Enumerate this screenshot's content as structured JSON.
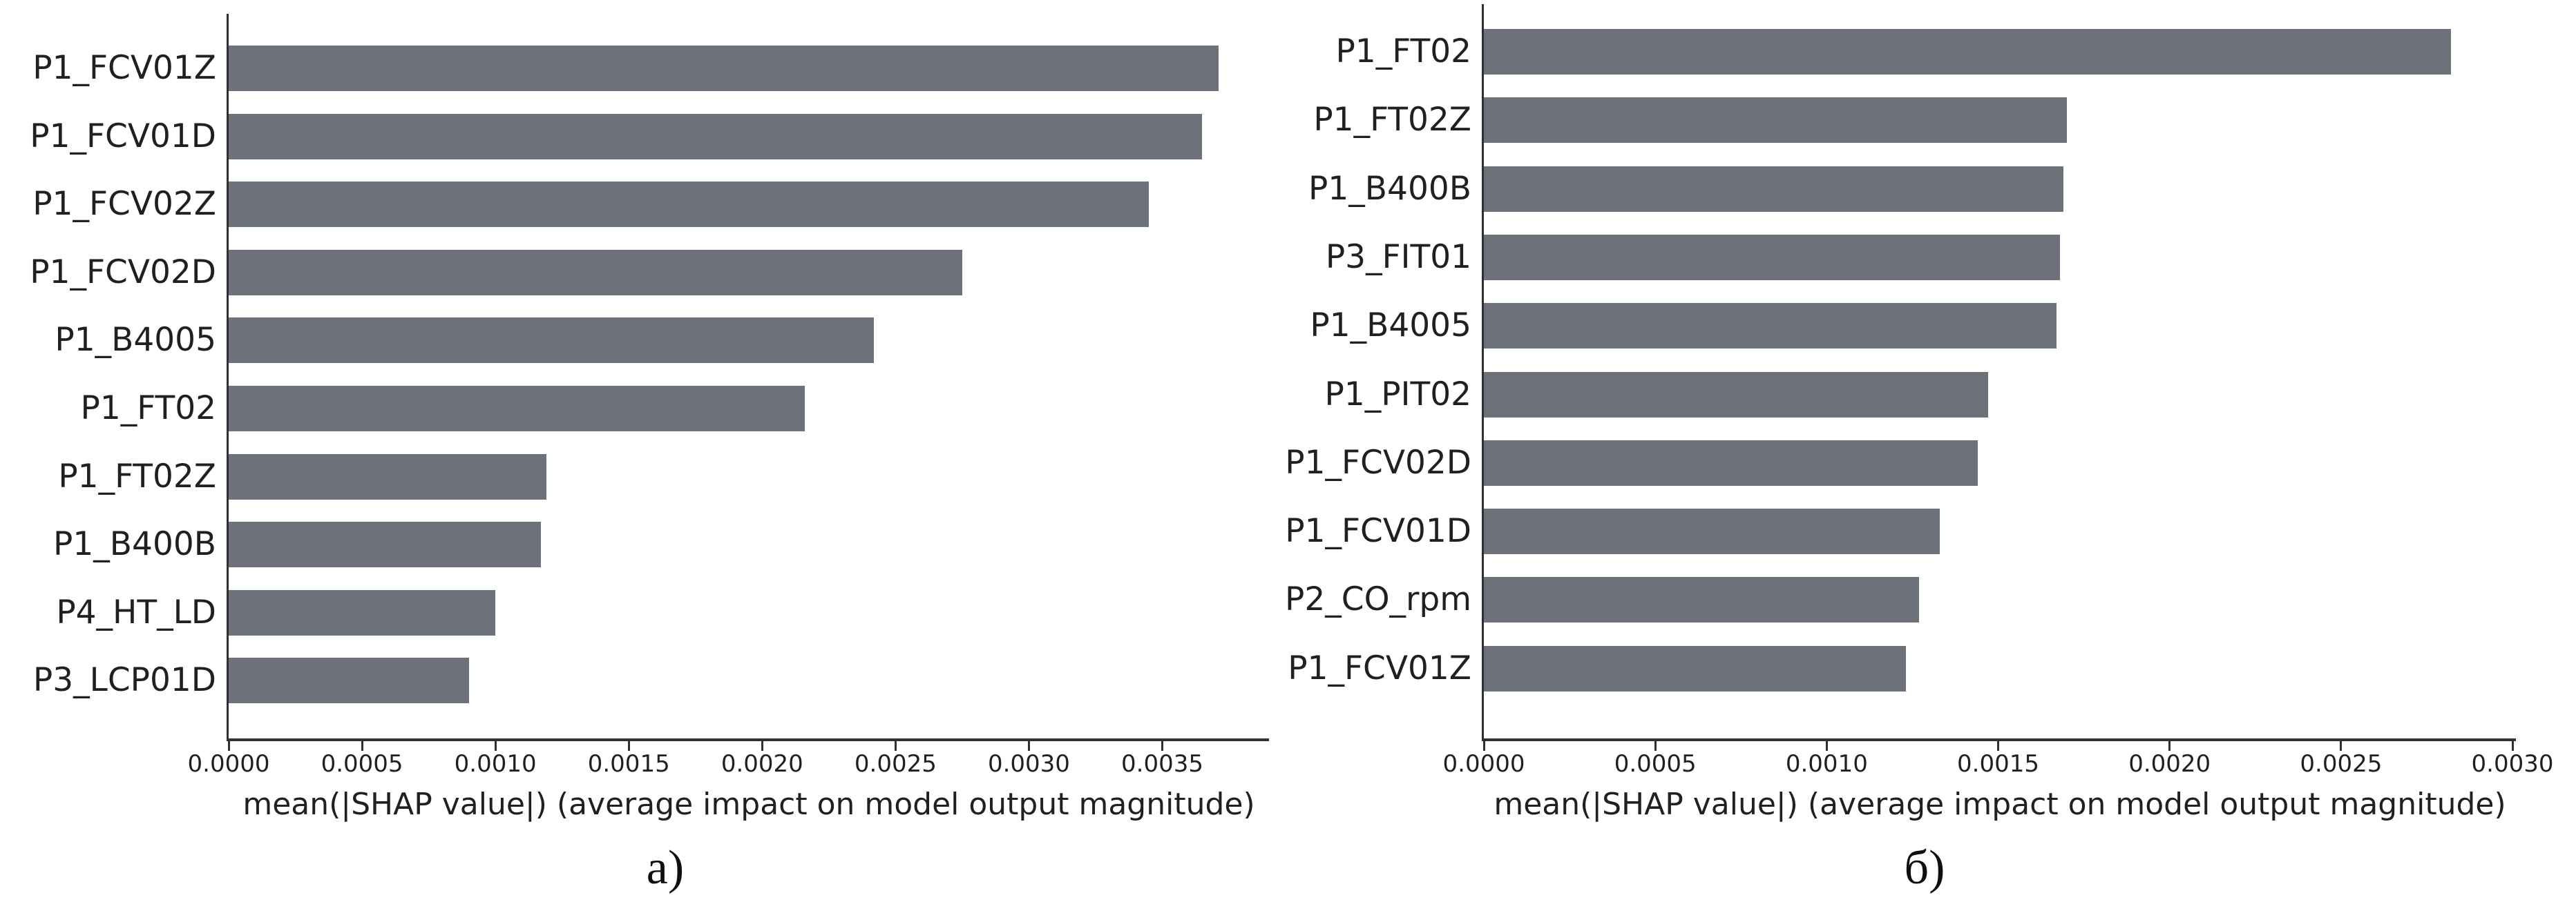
{
  "figure": {
    "background": "#ffffff",
    "axis_color": "#2f3033",
    "text_color": "#1f2023",
    "caption_color": "#0f0f0f"
  },
  "chart_data": [
    {
      "type": "bar",
      "orientation": "horizontal",
      "panel": "left",
      "caption": "а)",
      "title": "",
      "xlabel": "mean(|SHAP value|) (average impact on model output magnitude)",
      "ylabel": "",
      "categories": [
        "P1_FCV01Z",
        "P1_FCV01D",
        "P1_FCV02Z",
        "P1_FCV02D",
        "P1_B4005",
        "P1_FT02",
        "P1_FT02Z",
        "P1_B400B",
        "P4_HT_LD",
        "P3_LCP01D"
      ],
      "values": [
        0.00371,
        0.00365,
        0.00345,
        0.00275,
        0.00242,
        0.00216,
        0.00119,
        0.00117,
        0.001,
        0.0009
      ],
      "xlim": [
        0,
        0.0039
      ],
      "xticks": [
        0.0,
        0.0005,
        0.001,
        0.0015,
        0.002,
        0.0025,
        0.003,
        0.0035
      ],
      "xtick_labels": [
        "0.0000",
        "0.0005",
        "0.0010",
        "0.0015",
        "0.0020",
        "0.0025",
        "0.0030",
        "0.0035"
      ],
      "bar_color": "#6d727a",
      "grid": false,
      "legend": null
    },
    {
      "type": "bar",
      "orientation": "horizontal",
      "panel": "right",
      "caption": "б)",
      "title": "",
      "xlabel": "mean(|SHAP value|) (average impact on model output magnitude)",
      "ylabel": "",
      "categories": [
        "P1_FT02",
        "P1_FT02Z",
        "P1_B400B",
        "P3_FIT01",
        "P1_B4005",
        "P1_PIT02",
        "P1_FCV02D",
        "P1_FCV01D",
        "P2_CO_rpm",
        "P1_FCV01Z"
      ],
      "values": [
        0.00282,
        0.0017,
        0.00169,
        0.00168,
        0.00167,
        0.00147,
        0.00144,
        0.00133,
        0.00127,
        0.00123
      ],
      "xlim": [
        0,
        0.00301
      ],
      "xticks": [
        0.0,
        0.0005,
        0.001,
        0.0015,
        0.002,
        0.0025,
        0.003
      ],
      "xtick_labels": [
        "0.0000",
        "0.0005",
        "0.0010",
        "0.0015",
        "0.0020",
        "0.0025",
        "0.0030"
      ],
      "bar_color": "#6d727a",
      "grid": false,
      "legend": null
    }
  ]
}
